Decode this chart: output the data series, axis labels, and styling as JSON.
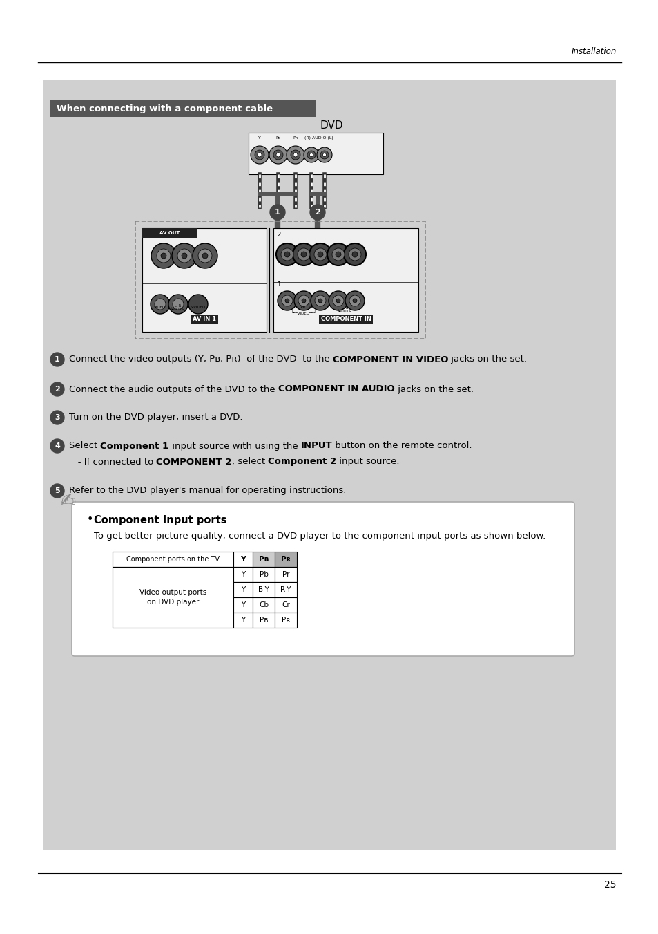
{
  "bg_color": "#ffffff",
  "page_bg": "#d0d0d0",
  "header_text": "Installation",
  "section_title": "When connecting with a component cable",
  "section_title_bg": "#555555",
  "section_title_color": "#ffffff",
  "dvd_label": "DVD",
  "step1_pre": "Connect the video outputs (Y, P",
  "step1_sub1": "B",
  "step1_mid": ", P",
  "step1_sub2": "R",
  "step1_post": ")  of the DVD  to the ",
  "step1_bold": "COMPONENT IN VIDEO",
  "step1_end": " jacks on the set.",
  "step2_pre": "Connect the audio outputs of the DVD to the ",
  "step2_bold": "COMPONENT IN AUDIO",
  "step2_end": " jacks on the set.",
  "step3": "Turn on the DVD player, insert a DVD.",
  "step4_pre": "Select ",
  "step4_bold1": "Component 1",
  "step4_mid": " input source with using the ",
  "step4_bold2": "INPUT",
  "step4_end": " button on the remote control.",
  "step4b_pre": "- If connected to ",
  "step4b_bold1": "COMPONENT 2",
  "step4b_mid": ", select ",
  "step4b_bold2": "Component 2",
  "step4b_end": " input source.",
  "step5": "Refer to the DVD player's manual for operating instructions.",
  "note_title": "Component Input ports",
  "note_body": "To get better picture quality, connect a DVD player to the component input ports as shown below.",
  "table_header_col1": "Component ports on the TV",
  "table_header_cols": [
    "Y",
    "Pʙ",
    "Pʀ"
  ],
  "table_row_label1": "Video output ports",
  "table_row_label2": "on DVD player",
  "table_data": [
    [
      "Y",
      "Pb",
      "Pr"
    ],
    [
      "Y",
      "B-Y",
      "R-Y"
    ],
    [
      "Y",
      "Cb",
      "Cr"
    ],
    [
      "Y",
      "Pʙ",
      "Pʀ"
    ]
  ],
  "page_number": "25",
  "font_size_body": 9.5,
  "font_size_small": 7.5,
  "font_size_header": 8.5,
  "font_size_section": 9.5,
  "font_size_dvd": 11
}
